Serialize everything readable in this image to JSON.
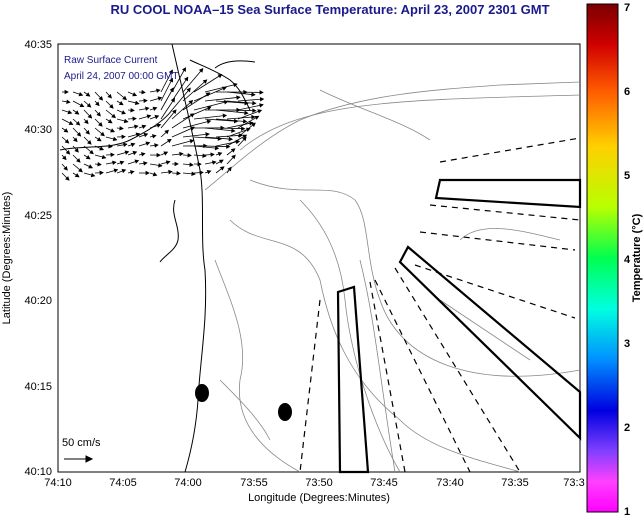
{
  "title": "RU COOL  NOAA–15  Sea Surface Temperature:  April 23, 2007 2301 GMT",
  "annotation": {
    "line1": "Raw Surface Current",
    "line2": "April 24, 2007 00:00 GMT"
  },
  "scale_label": "50 cm/s",
  "x_axis": {
    "label": "Longitude (Degrees:Minutes)",
    "ticks": [
      "74:10",
      "74:05",
      "74:00",
      "73:55",
      "73:50",
      "73:45",
      "73:40",
      "73:35",
      "73:3"
    ]
  },
  "y_axis": {
    "label": "Latitude (Degrees:Minutes)",
    "ticks": [
      "40:35",
      "40:30",
      "40:25",
      "40:20",
      "40:15",
      "40:10"
    ]
  },
  "colorbar": {
    "label": "Temperature (°C)",
    "ticks": [
      "7",
      "6",
      "5",
      "4",
      "3",
      "2",
      "1"
    ]
  }
}
